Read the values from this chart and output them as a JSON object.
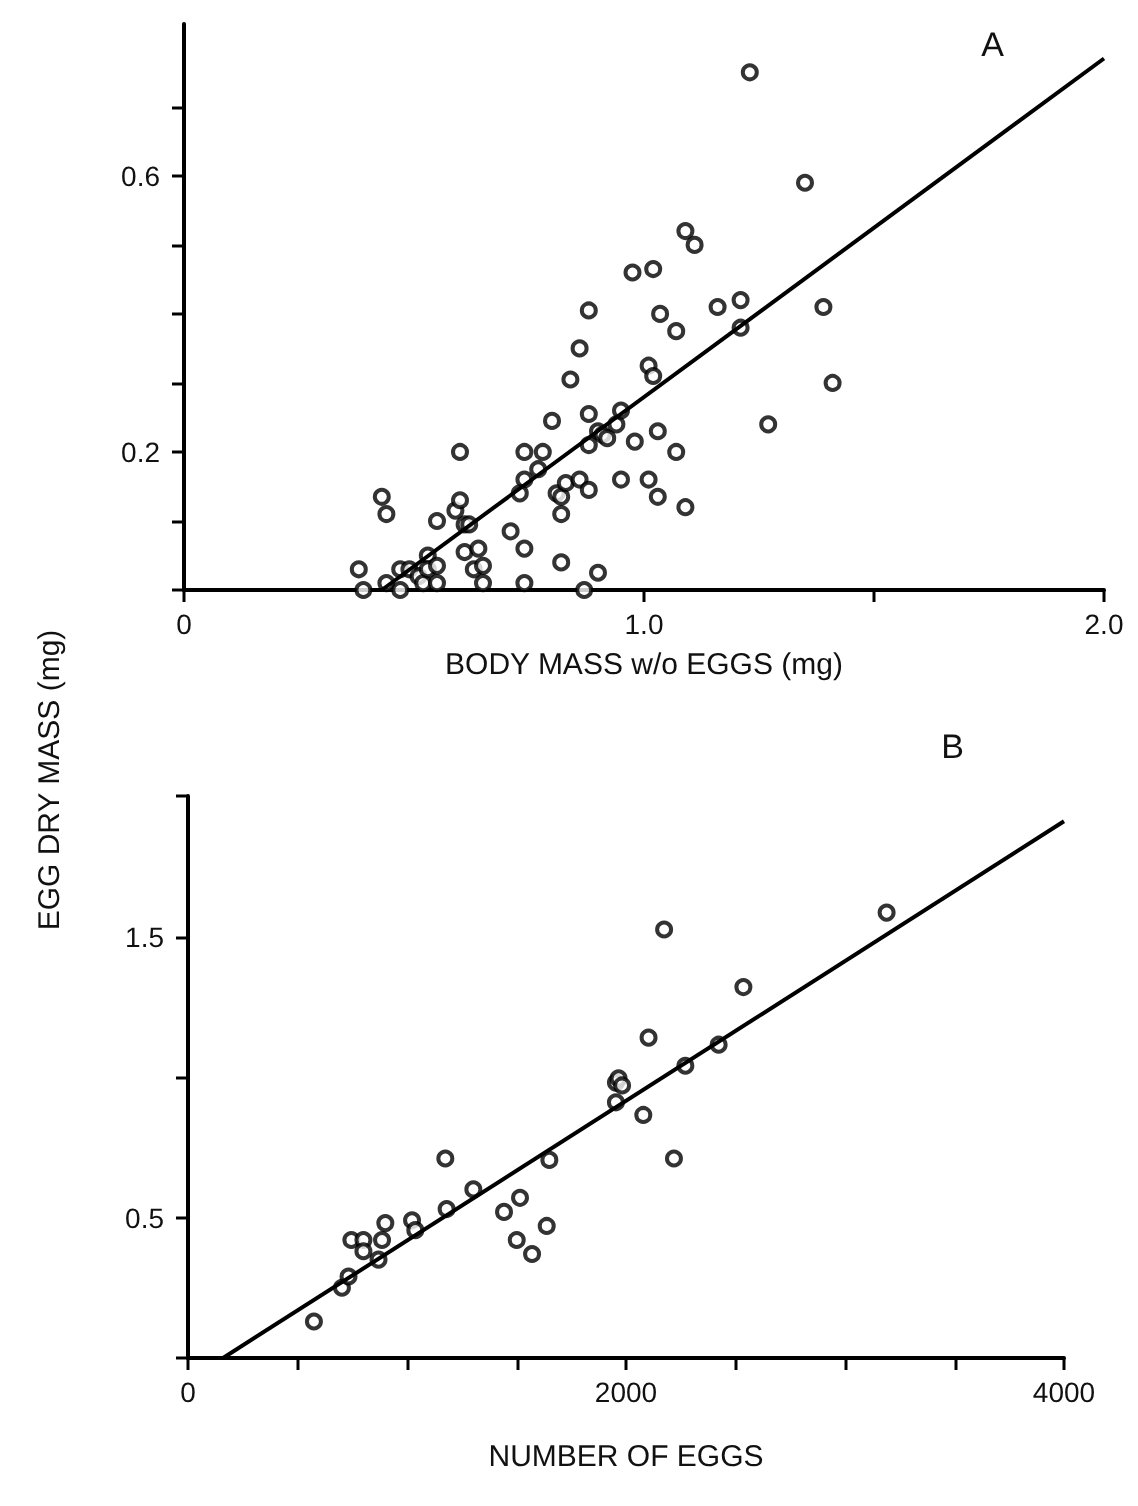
{
  "chart_data": [
    {
      "type": "scatter",
      "xlabel": "BODY MASS w/o EGGS (mg)",
      "ylabel": "EGG DRY MASS (mg)",
      "annotations": [
        "A"
      ],
      "grid": false,
      "xlim": [
        0,
        2.0
      ],
      "ylim": [
        0,
        0.82
      ],
      "xticks": [
        0,
        {
          "value": 1.0,
          "label": "1.0"
        },
        {
          "value": 1.5,
          "label": null
        },
        {
          "value": 2.0,
          "label": "2.0"
        }
      ],
      "yticks": [
        {
          "value": 0,
          "label": null
        },
        {
          "value": 0.1,
          "label": null
        },
        {
          "value": 0.2,
          "label": "0.2"
        },
        {
          "value": 0.3,
          "label": null
        },
        {
          "value": 0.4,
          "label": null
        },
        {
          "value": 0.5,
          "label": null
        },
        {
          "value": 0.6,
          "label": "0.6"
        },
        {
          "value": 0.7,
          "label": null
        }
      ],
      "series": [
        {
          "type": "scatter",
          "marker": "circle",
          "color": "#000000",
          "x": [
            0.38,
            0.39,
            0.43,
            0.44,
            0.44,
            0.47,
            0.47,
            0.49,
            0.51,
            0.52,
            0.53,
            0.53,
            0.55,
            0.55,
            0.55,
            0.59,
            0.6,
            0.6,
            0.61,
            0.62,
            0.61,
            0.64,
            0.63,
            0.65,
            0.65,
            0.71,
            0.74,
            0.78,
            0.74,
            0.73,
            0.74,
            0.74,
            0.77,
            0.8,
            0.81,
            0.82,
            0.82,
            0.82,
            0.83,
            0.84,
            0.86,
            0.86,
            0.88,
            0.88,
            0.87,
            0.88,
            0.88,
            0.9,
            0.9,
            0.91,
            0.92,
            0.94,
            0.95,
            0.95,
            0.975,
            0.98,
            1.01,
            1.01,
            1.02,
            1.02,
            1.03,
            1.03,
            1.035,
            1.07,
            1.07,
            1.09,
            1.11,
            1.09,
            1.16,
            1.21,
            1.21,
            1.23,
            1.27,
            1.35,
            1.39,
            1.41
          ],
          "values": [
            0.03,
            0.0,
            0.135,
            0.11,
            0.01,
            0.03,
            0.0,
            0.03,
            0.02,
            0.01,
            0.05,
            0.03,
            0.01,
            0.035,
            0.1,
            0.115,
            0.13,
            0.2,
            0.095,
            0.095,
            0.055,
            0.06,
            0.03,
            0.035,
            0.01,
            0.085,
            0.2,
            0.2,
            0.16,
            0.14,
            0.06,
            0.01,
            0.175,
            0.245,
            0.14,
            0.04,
            0.135,
            0.11,
            0.155,
            0.305,
            0.16,
            0.35,
            0.405,
            0.145,
            0.0,
            0.21,
            0.255,
            0.025,
            0.23,
            0.225,
            0.22,
            0.24,
            0.26,
            0.16,
            0.46,
            0.215,
            0.325,
            0.16,
            0.31,
            0.465,
            0.23,
            0.135,
            0.4,
            0.2,
            0.375,
            0.52,
            0.5,
            0.12,
            0.41,
            0.42,
            0.38,
            0.75,
            0.24,
            0.59,
            0.41,
            0.3
          ]
        },
        {
          "type": "line",
          "marker": "none",
          "color": "#000000",
          "x": [
            0.43,
            2.0
          ],
          "values": [
            0,
            0.77
          ]
        }
      ]
    },
    {
      "type": "scatter",
      "xlabel": "NUMBER OF EGGS",
      "annotations": [
        "B"
      ],
      "grid": false,
      "xlim": [
        0,
        4000
      ],
      "ylim": [
        0,
        2.0
      ],
      "xticks": [
        0,
        {
          "value": 500,
          "label": null
        },
        {
          "value": 1000,
          "label": null
        },
        {
          "value": 1500,
          "label": null
        },
        2000,
        {
          "value": 2500,
          "label": null
        },
        {
          "value": 3000,
          "label": null
        },
        {
          "value": 3500,
          "label": null
        },
        4000
      ],
      "yticks": [
        {
          "value": 0,
          "label": null
        },
        0.5,
        {
          "value": 1.0,
          "label": null
        },
        1.5,
        {
          "value": 2.0,
          "label": null
        }
      ],
      "series": [
        {
          "type": "scatter",
          "marker": "circle",
          "color": "#000000",
          "x": [
            575,
            703,
            733,
            746,
            801,
            801,
            870,
            886,
            901,
            1023,
            1038,
            1175,
            1181,
            1303,
            1443,
            1516,
            1501,
            1571,
            1638,
            1650,
            1954,
            1966,
            1982,
            1954,
            2079,
            2103,
            2174,
            2219,
            2271,
            2423,
            2536,
            3190
          ],
          "values": [
            0.13,
            0.25,
            0.29,
            0.42,
            0.42,
            0.38,
            0.35,
            0.42,
            0.48,
            0.49,
            0.455,
            0.71,
            0.53,
            0.6,
            0.52,
            0.57,
            0.42,
            0.37,
            0.47,
            0.705,
            0.98,
            0.995,
            0.97,
            0.91,
            0.865,
            1.14,
            1.525,
            0.71,
            1.04,
            1.115,
            1.32,
            1.585
          ]
        },
        {
          "type": "line",
          "marker": "none",
          "color": "#000000",
          "x": [
            160,
            4000
          ],
          "values": [
            0,
            1.91
          ]
        }
      ]
    }
  ]
}
